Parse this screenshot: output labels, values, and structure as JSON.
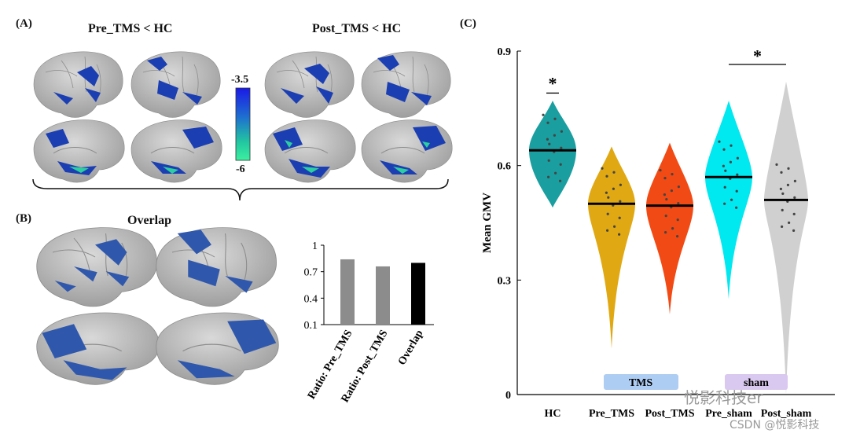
{
  "panelA": {
    "label": "(A)",
    "title_left": "Pre_TMS  < HC",
    "title_right": "Post_TMS < HC",
    "colorbar": {
      "top": "-3.5",
      "bottom": "-6",
      "colors": [
        "#1a1ae6",
        "#1e6fd0",
        "#22c7a0",
        "#3cf0a0"
      ]
    }
  },
  "panelB": {
    "label": "(B)",
    "title": "Overlap",
    "chart_data": {
      "type": "bar",
      "categories": [
        "Ratio: Pre_TMS",
        "Ratio: Post_TMS",
        "Overlap"
      ],
      "values": [
        0.84,
        0.76,
        0.8
      ],
      "colors": [
        "#8c8c8c",
        "#8c8c8c",
        "#000000"
      ],
      "yticks": [
        "0.1",
        "0.4",
        "0.7",
        "1"
      ],
      "ylim": [
        0.1,
        1
      ]
    }
  },
  "panelC": {
    "label": "(C)",
    "chart_data": {
      "type": "violin",
      "ylabel": "Mean GMV",
      "yticks": [
        "0",
        "0.3",
        "0.6",
        "0.9"
      ],
      "ylim": [
        0,
        0.9
      ],
      "groups": [
        {
          "name": "HC",
          "color": "#1a9e9f",
          "median": 0.64,
          "min": 0.49,
          "max": 0.77
        },
        {
          "name": "Pre_TMS",
          "color": "#e0a812",
          "median": 0.5,
          "min": 0.12,
          "max": 0.65
        },
        {
          "name": "Post_TMS",
          "color": "#f24a14",
          "median": 0.495,
          "min": 0.21,
          "max": 0.66
        },
        {
          "name": "Pre_sham",
          "color": "#00e8f0",
          "median": 0.57,
          "min": 0.25,
          "max": 0.77
        },
        {
          "name": "Post_sham",
          "color": "#d0d0d0",
          "median": 0.51,
          "min": 0.0,
          "max": 0.82
        }
      ],
      "annotations": {
        "star_hc": "*",
        "star_sham": "*"
      },
      "group_labels": {
        "tms": "TMS",
        "sham": "sham"
      }
    }
  },
  "watermark": {
    "top": "悦影科技er",
    "bottom": "CSDN @悦影科技"
  }
}
